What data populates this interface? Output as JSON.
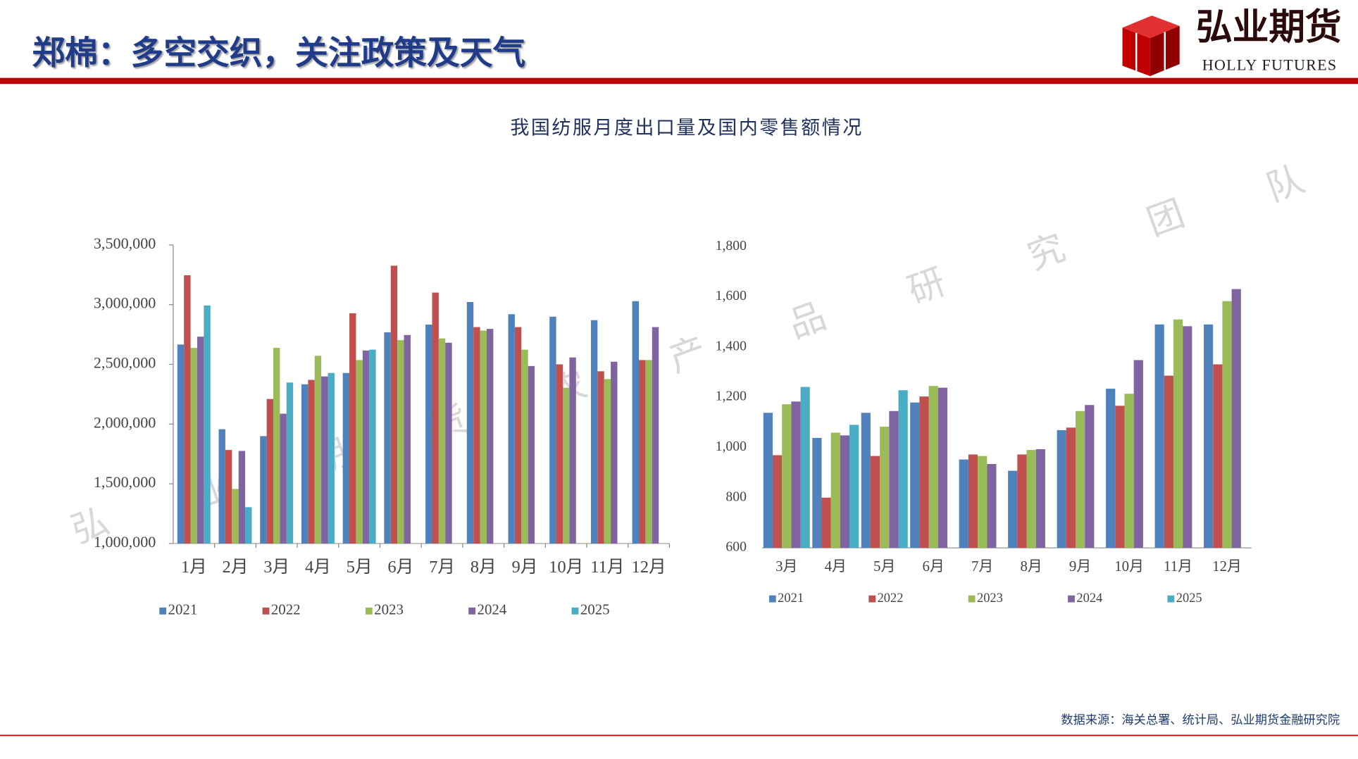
{
  "slide": {
    "title": "郑棉：多空交织，关注政策及天气",
    "logo_cn": "弘业期货",
    "logo_en": "HOLLY FUTURES",
    "chart_title": "我国纺服月度出口量及国内零售额情况",
    "source": "数据来源：海关总署、统计局、弘业期货金融研究院",
    "watermark": [
      "弘",
      "业",
      "期",
      "货",
      "农",
      "产",
      "品",
      "研",
      "究",
      "团",
      "队"
    ]
  },
  "chart_data": [
    {
      "type": "bar",
      "legend": "bottom",
      "categories": [
        "1月",
        "2月",
        "3月",
        "4月",
        "5月",
        "6月",
        "7月",
        "8月",
        "9月",
        "10月",
        "11月",
        "12月"
      ],
      "ylim": [
        1000000,
        3500000
      ],
      "yticks": [
        {
          "value": 1000000,
          "label": "1,000,000"
        },
        {
          "value": 1500000,
          "label": "1,500,000"
        },
        {
          "value": 2000000,
          "label": "2,000,000"
        },
        {
          "value": 2500000,
          "label": "2,500,000"
        },
        {
          "value": 3000000,
          "label": "3,000,000"
        },
        {
          "value": 3500000,
          "label": "3,500,000"
        }
      ],
      "series": [
        {
          "name": "2021",
          "color": "#4f81bd",
          "values": [
            2666000,
            1957000,
            1899000,
            2333000,
            2428000,
            2768000,
            2833000,
            3022000,
            2920000,
            2899000,
            2870000,
            3029000
          ]
        },
        {
          "name": "2022",
          "color": "#c0504d",
          "values": [
            3246000,
            1783000,
            2210000,
            2370000,
            2928000,
            3326000,
            3101000,
            2812000,
            2812000,
            2500000,
            2442000,
            2536000
          ]
        },
        {
          "name": "2023",
          "color": "#9bbb59",
          "values": [
            2638000,
            1457000,
            2638000,
            2572000,
            2536000,
            2703000,
            2717000,
            2783000,
            2623000,
            2304000,
            2377000,
            2536000
          ]
        },
        {
          "name": "2024",
          "color": "#8064a2",
          "values": [
            2732000,
            1775000,
            2087000,
            2399000,
            2616000,
            2746000,
            2681000,
            2797000,
            2486000,
            2558000,
            2522000,
            2812000
          ]
        },
        {
          "name": "2025",
          "color": "#4bacc6",
          "values": [
            2993000,
            1304000,
            2348000,
            2428000,
            2623000,
            null,
            null,
            null,
            null,
            null,
            null,
            null
          ]
        }
      ]
    },
    {
      "type": "bar",
      "legend": "bottom",
      "categories": [
        "3月",
        "4月",
        "5月",
        "6月",
        "7月",
        "8月",
        "9月",
        "10月",
        "11月",
        "12月"
      ],
      "ylim": [
        600,
        1800
      ],
      "yticks": [
        600,
        800,
        {
          "value": 1000,
          "label": "1,000"
        },
        {
          "value": 1200,
          "label": "1,200"
        },
        {
          "value": 1400,
          "label": "1,400"
        },
        {
          "value": 1600,
          "label": "1,600"
        },
        {
          "value": 1800,
          "label": "1,800"
        }
      ],
      "series": [
        {
          "name": "2021",
          "color": "#4f81bd",
          "values": [
            1138,
            1038,
            1138,
            1179,
            952,
            907,
            1069,
            1234,
            1490,
            1490
          ]
        },
        {
          "name": "2022",
          "color": "#c0504d",
          "values": [
            969,
            800,
            966,
            1203,
            972,
            972,
            1079,
            1166,
            1286,
            1331
          ]
        },
        {
          "name": "2023",
          "color": "#9bbb59",
          "values": [
            1172,
            1059,
            1083,
            1245,
            966,
            990,
            1145,
            1214,
            1510,
            1583
          ]
        },
        {
          "name": "2024",
          "color": "#8064a2",
          "values": [
            1183,
            1048,
            1145,
            1238,
            934,
            993,
            1169,
            1348,
            1483,
            1631
          ]
        },
        {
          "name": "2025",
          "color": "#4bacc6",
          "values": [
            1241,
            1090,
            1228,
            null,
            null,
            null,
            null,
            null,
            null,
            null
          ]
        }
      ]
    }
  ]
}
